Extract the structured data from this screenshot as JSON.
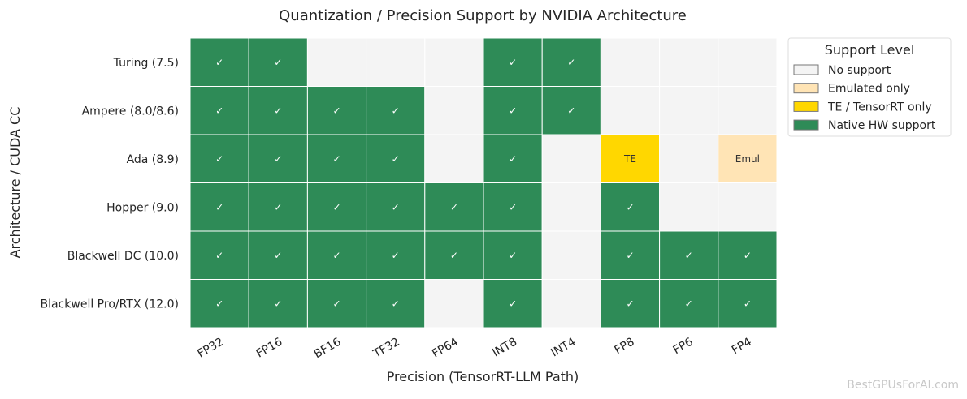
{
  "chart_data": {
    "type": "heatmap",
    "title": "Quantization / Precision Support by NVIDIA Architecture",
    "xlabel": "Precision (TensorRT-LLM Path)",
    "ylabel": "Architecture / CUDA CC",
    "columns": [
      "FP32",
      "FP16",
      "BF16",
      "TF32",
      "FP64",
      "INT8",
      "INT4",
      "FP8",
      "FP6",
      "FP4"
    ],
    "rows": [
      "Turing (7.5)",
      "Ampere (8.0/8.6)",
      "Ada (8.9)",
      "Hopper (9.0)",
      "Blackwell DC (10.0)",
      "Blackwell Pro/RTX (12.0)"
    ],
    "values": [
      [
        3,
        3,
        0,
        0,
        0,
        3,
        3,
        0,
        0,
        0
      ],
      [
        3,
        3,
        3,
        3,
        0,
        3,
        3,
        0,
        0,
        0
      ],
      [
        3,
        3,
        3,
        3,
        0,
        3,
        0,
        2,
        0,
        1
      ],
      [
        3,
        3,
        3,
        3,
        3,
        3,
        0,
        3,
        0,
        0
      ],
      [
        3,
        3,
        3,
        3,
        3,
        3,
        0,
        3,
        3,
        3
      ],
      [
        3,
        3,
        3,
        3,
        0,
        3,
        0,
        3,
        3,
        3
      ]
    ],
    "levels": [
      {
        "value": 0,
        "name": "No support",
        "color": "#f4f4f4",
        "cell_label": ""
      },
      {
        "value": 1,
        "name": "Emulated only",
        "color": "#ffe4b5",
        "cell_label": "Emul"
      },
      {
        "value": 2,
        "name": "TE / TensorRT only",
        "color": "#ffd700",
        "cell_label": "TE"
      },
      {
        "value": 3,
        "name": "Native HW support",
        "color": "#2e8b57",
        "cell_label": "✓"
      }
    ],
    "legend": {
      "title": "Support Level",
      "placement": "outside-top-right"
    },
    "grid": false
  },
  "watermark": "BestGPUsForAI.com"
}
